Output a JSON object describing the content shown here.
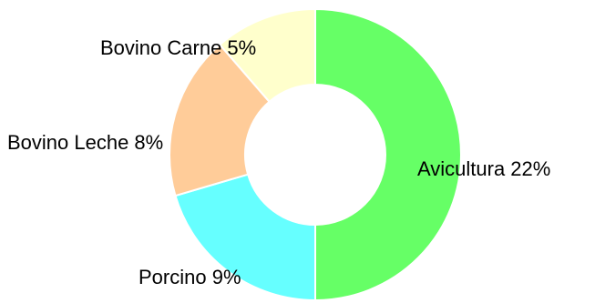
{
  "chart_data": {
    "type": "pie",
    "donut": true,
    "categories": [
      "Avicultura",
      "Porcino",
      "Bovino Leche",
      "Bovino Carne"
    ],
    "values": [
      22,
      9,
      8,
      5
    ],
    "labels": [
      "Avicultura 22%",
      "Porcino 9%",
      "Bovino Leche 8%",
      "Bovino Carne 5%"
    ],
    "colors": [
      "#66ff66",
      "#66ffff",
      "#ffcc99",
      "#ffffcc"
    ],
    "title": "",
    "legend": "none"
  }
}
